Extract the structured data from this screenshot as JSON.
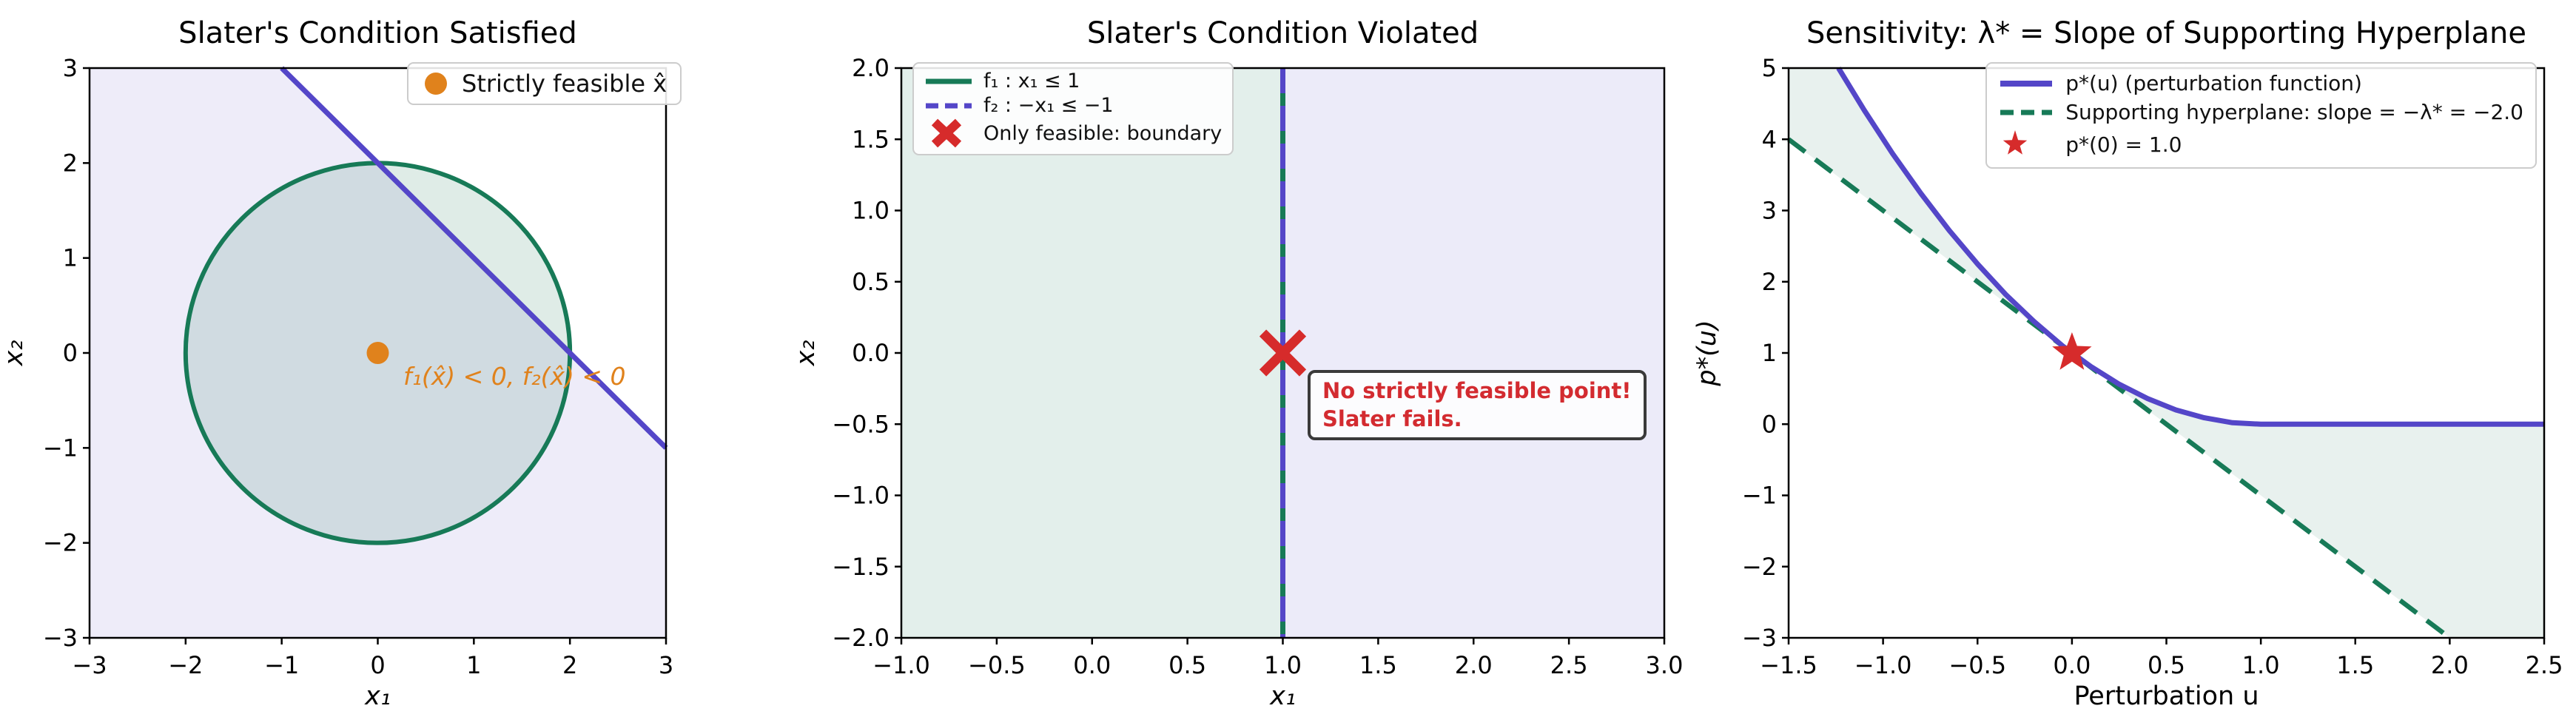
{
  "colors": {
    "purple": "#5446c8",
    "green": "#177a57",
    "orange": "#e0821c",
    "red": "#d62b2b",
    "annotation_red": "#d32b30",
    "purple_fill": "rgba(84,70,200,0.10)",
    "green_fill": "rgba(26,122,87,0.12)"
  },
  "chart_data": [
    {
      "id": "slater-satisfied",
      "type": "area",
      "title": "Slater's Condition Satisfied",
      "xlabel": "x₁",
      "ylabel": "x₂",
      "xlabel_italic": true,
      "xlim": [
        -3,
        3
      ],
      "ylim": [
        -3,
        3
      ],
      "xticks": {
        "values": [
          -3,
          -2,
          -1,
          0,
          1,
          2,
          3
        ],
        "labels": [
          "−3",
          "−2",
          "−1",
          "0",
          "1",
          "2",
          "3"
        ]
      },
      "yticks": {
        "values": [
          -3,
          -2,
          -1,
          0,
          1,
          2,
          3
        ],
        "labels": [
          "−3",
          "−2",
          "−1",
          "0",
          "1",
          "2",
          "3"
        ]
      },
      "elements": [
        {
          "kind": "polygon",
          "name": "feasible-halfplane-f2",
          "points": [
            [
              -3,
              3
            ],
            [
              -1,
              3
            ],
            [
              3,
              -1
            ],
            [
              3,
              -3
            ],
            [
              -3,
              -3
            ]
          ],
          "fill": "rgba(84,70,200,0.10)"
        },
        {
          "kind": "ellipse",
          "name": "feasible-disk-f1",
          "cx": 0,
          "cy": 0,
          "rx": 2,
          "ry": 2,
          "fill": "rgba(26,122,87,0.14)",
          "stroke": "#177a57",
          "width": 6
        },
        {
          "kind": "line",
          "name": "constraint-line-f2",
          "points": [
            [
              -1,
              3
            ],
            [
              3,
              -1
            ]
          ],
          "stroke": "#5446c8",
          "width": 7
        },
        {
          "kind": "marker",
          "name": "strictly-feasible-point",
          "shape": "dot",
          "x": 0,
          "y": 0,
          "size": 15,
          "color": "#e0821c"
        }
      ],
      "legend": {
        "items": [
          {
            "marker": "dot",
            "color": "#e0821c",
            "label": "Strictly feasible x̂"
          }
        ]
      },
      "annotation": {
        "text": "f₁(x̂) < 0,  f₂(x̂) < 0",
        "color": "#e0821c"
      }
    },
    {
      "id": "slater-violated",
      "type": "area",
      "title": "Slater's Condition Violated",
      "xlabel": "x₁",
      "ylabel": "x₂",
      "xlabel_italic": true,
      "xlim": [
        -1,
        3
      ],
      "ylim": [
        -2,
        2
      ],
      "xticks": {
        "values": [
          -1,
          -0.5,
          0,
          0.5,
          1,
          1.5,
          2,
          2.5,
          3
        ],
        "labels": [
          "−1.0",
          "−0.5",
          "0.0",
          "0.5",
          "1.0",
          "1.5",
          "2.0",
          "2.5",
          "3.0"
        ]
      },
      "yticks": {
        "values": [
          -2,
          -1.5,
          -1,
          -0.5,
          0,
          0.5,
          1,
          1.5,
          2
        ],
        "labels": [
          "−2.0",
          "−1.5",
          "−1.0",
          "−0.5",
          "0.0",
          "0.5",
          "1.0",
          "1.5",
          "2.0"
        ]
      },
      "elements": [
        {
          "kind": "polygon",
          "name": "region-f1-left",
          "points": [
            [
              -1,
              2
            ],
            [
              1,
              2
            ],
            [
              1,
              -2
            ],
            [
              -1,
              -2
            ]
          ],
          "fill": "rgba(26,122,87,0.12)"
        },
        {
          "kind": "polygon",
          "name": "region-f2-right",
          "points": [
            [
              1,
              2
            ],
            [
              3,
              2
            ],
            [
              3,
              -2
            ],
            [
              1,
              -2
            ]
          ],
          "fill": "rgba(84,70,200,0.11)"
        },
        {
          "kind": "line",
          "name": "boundary-f1",
          "points": [
            [
              1,
              2
            ],
            [
              1,
              -2
            ]
          ],
          "stroke": "#177a57",
          "width": 7
        },
        {
          "kind": "line",
          "name": "boundary-f2",
          "points": [
            [
              1,
              2
            ],
            [
              1,
              -2
            ]
          ],
          "stroke": "#5446c8",
          "width": 7,
          "dash": "34 17"
        },
        {
          "kind": "marker",
          "name": "only-feasible-point",
          "shape": "x",
          "x": 1,
          "y": 0,
          "size": 27,
          "color": "#d62b2b"
        }
      ],
      "legend": {
        "items": [
          {
            "marker": "line",
            "color": "#177a57",
            "label": "f₁ : x₁ ≤ 1"
          },
          {
            "marker": "dashed",
            "color": "#5446c8",
            "label": "f₂ : −x₁ ≤ −1"
          },
          {
            "marker": "x",
            "color": "#d62b2b",
            "label": "Only feasible: boundary"
          }
        ]
      },
      "annotation": {
        "line1": "No strictly feasible point!",
        "line2": "Slater fails.",
        "color": "#d32b30"
      }
    },
    {
      "id": "sensitivity",
      "type": "line",
      "title": "Sensitivity: λ* = Slope of Supporting Hyperplane",
      "xlabel": "Perturbation u",
      "ylabel": "p*(u)",
      "xlabel_italic": false,
      "xlim": [
        -1.5,
        2.5
      ],
      "ylim": [
        -3,
        5
      ],
      "xticks": {
        "values": [
          -1.5,
          -1,
          -0.5,
          0,
          0.5,
          1,
          1.5,
          2,
          2.5
        ],
        "labels": [
          "−1.5",
          "−1.0",
          "−0.5",
          "0.0",
          "0.5",
          "1.0",
          "1.5",
          "2.0",
          "2.5"
        ]
      },
      "yticks": {
        "values": [
          -3,
          -2,
          -1,
          0,
          1,
          2,
          3,
          4,
          5
        ],
        "labels": [
          "−3",
          "−2",
          "−1",
          "0",
          "1",
          "2",
          "3",
          "4",
          "5"
        ]
      },
      "elements": [
        {
          "kind": "polygon",
          "name": "duality-gap-fill",
          "points": [
            [
              -1.5,
              5
            ],
            [
              -1.236,
              5
            ],
            [
              -1.1,
              4.41
            ],
            [
              -0.9,
              3.61
            ],
            [
              -0.7,
              2.89
            ],
            [
              -0.5,
              2.25
            ],
            [
              -0.3,
              1.69
            ],
            [
              -0.1,
              1.21
            ],
            [
              0,
              1
            ],
            [
              0.2,
              0.64
            ],
            [
              0.4,
              0.36
            ],
            [
              0.6,
              0.16
            ],
            [
              0.8,
              0.04
            ],
            [
              1,
              0
            ],
            [
              2.5,
              0
            ],
            [
              2.5,
              -3
            ],
            [
              2,
              -3
            ],
            [
              -1.5,
              4
            ]
          ],
          "fill": "rgba(26,122,87,0.10)"
        },
        {
          "kind": "line",
          "name": "supporting-hyperplane",
          "points": [
            [
              -1.5,
              4
            ],
            [
              2,
              -3
            ]
          ],
          "stroke": "#177a57",
          "width": 6.5,
          "dash": "28 17"
        },
        {
          "kind": "curve",
          "name": "perturbation-function",
          "points": [
            [
              -1.236,
              5
            ],
            [
              -1.1,
              4.41
            ],
            [
              -0.95,
              3.8
            ],
            [
              -0.8,
              3.24
            ],
            [
              -0.65,
              2.72
            ],
            [
              -0.5,
              2.25
            ],
            [
              -0.35,
              1.82
            ],
            [
              -0.2,
              1.44
            ],
            [
              -0.05,
              1.1
            ],
            [
              0.1,
              0.81
            ],
            [
              0.25,
              0.56
            ],
            [
              0.4,
              0.36
            ],
            [
              0.55,
              0.2
            ],
            [
              0.7,
              0.09
            ],
            [
              0.85,
              0.02
            ],
            [
              1,
              0
            ],
            [
              2.5,
              0
            ]
          ],
          "stroke": "#5446c8",
          "width": 7
        },
        {
          "kind": "marker",
          "name": "optimal-value-point",
          "shape": "star",
          "x": 0,
          "y": 1,
          "size": 28,
          "color": "#d62b2b"
        }
      ],
      "legend": {
        "items": [
          {
            "marker": "line",
            "color": "#5446c8",
            "label": "p*(u) (perturbation function)"
          },
          {
            "marker": "dashed",
            "color": "#177a57",
            "label": "Supporting hyperplane: slope = −λ* = −2.0"
          },
          {
            "marker": "star",
            "color": "#d62b2b",
            "label": "p*(0) = 1.0"
          }
        ]
      },
      "key_values": {
        "p_star_at_0": 1.0,
        "lambda_star": 2.0,
        "hyperplane_slope": -2.0
      }
    }
  ]
}
